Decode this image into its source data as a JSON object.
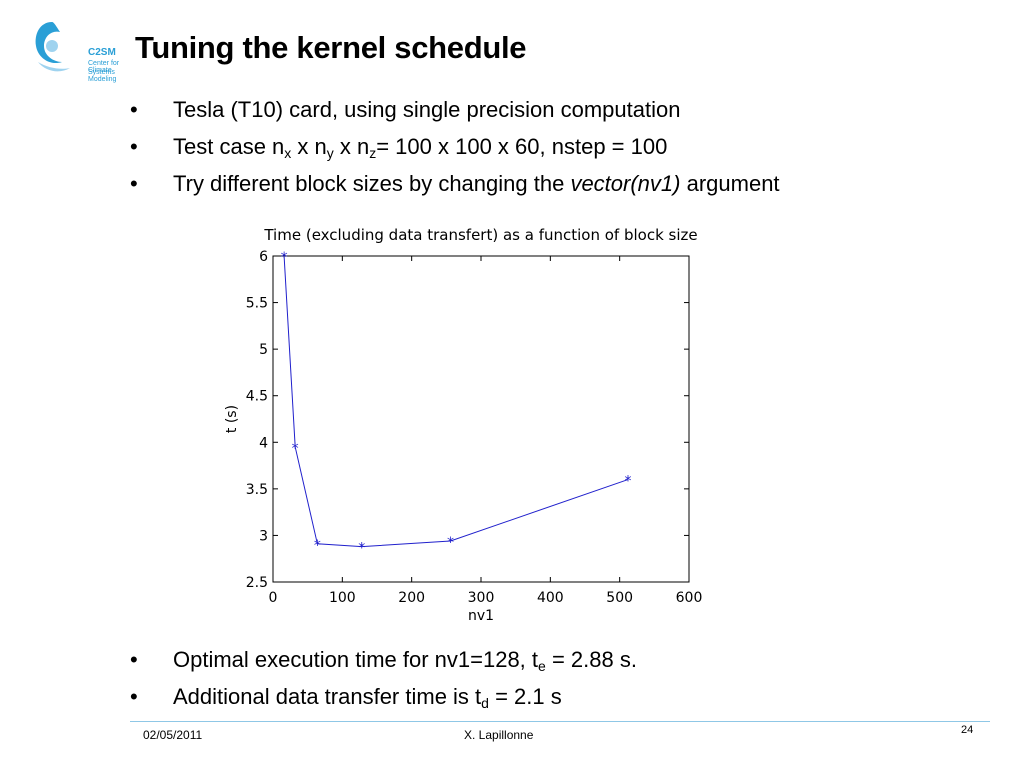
{
  "logo": {
    "abbr": "C2SM",
    "line1": "Center for Climate",
    "line2": "Systems Modeling",
    "colors": {
      "primary": "#2a9fd6",
      "light": "#9fd3ef"
    }
  },
  "title": "Tuning the kernel schedule",
  "bullets": [
    {
      "parts": [
        "Tesla (T10) card, using single precision computation"
      ]
    },
    {
      "t0": "Test case n",
      "s1": "x",
      "t1": " x n",
      "s2": "y",
      "t2": " x n",
      "s3": "z",
      "t3": "= 100 x 100 x 60, nstep = 100"
    },
    {
      "t0": "Try different block sizes by changing the ",
      "em": "vector(nv1)",
      "t1": " argument"
    }
  ],
  "bullet_char": "•",
  "bottom_bullets": [
    {
      "t0": "Optimal execution time for nv1=128, t",
      "s1": "e",
      "t1": " = 2.88 s."
    },
    {
      "t0": "Additional data transfer time is t",
      "s1": "d",
      "t1": " = 2.1 s"
    }
  ],
  "chart_data": {
    "type": "line",
    "title": "Time (excluding data transfert) as a function of block size",
    "xlabel": "nv1",
    "ylabel": "t (s)",
    "xlim": [
      0,
      600
    ],
    "ylim": [
      2.5,
      6
    ],
    "xticks": [
      0,
      100,
      200,
      300,
      400,
      500,
      600
    ],
    "yticks": [
      2.5,
      3,
      3.5,
      4,
      4.5,
      5,
      5.5,
      6
    ],
    "grid": false,
    "marker": "*",
    "color": "#2020cc",
    "x": [
      16,
      32,
      64,
      128,
      256,
      512
    ],
    "y": [
      6.0,
      3.95,
      2.91,
      2.88,
      2.94,
      3.6
    ]
  },
  "footer": {
    "date": "02/05/2011",
    "author": "X. Lapillonne",
    "page": "24",
    "line_color": "#8fc7e6"
  }
}
